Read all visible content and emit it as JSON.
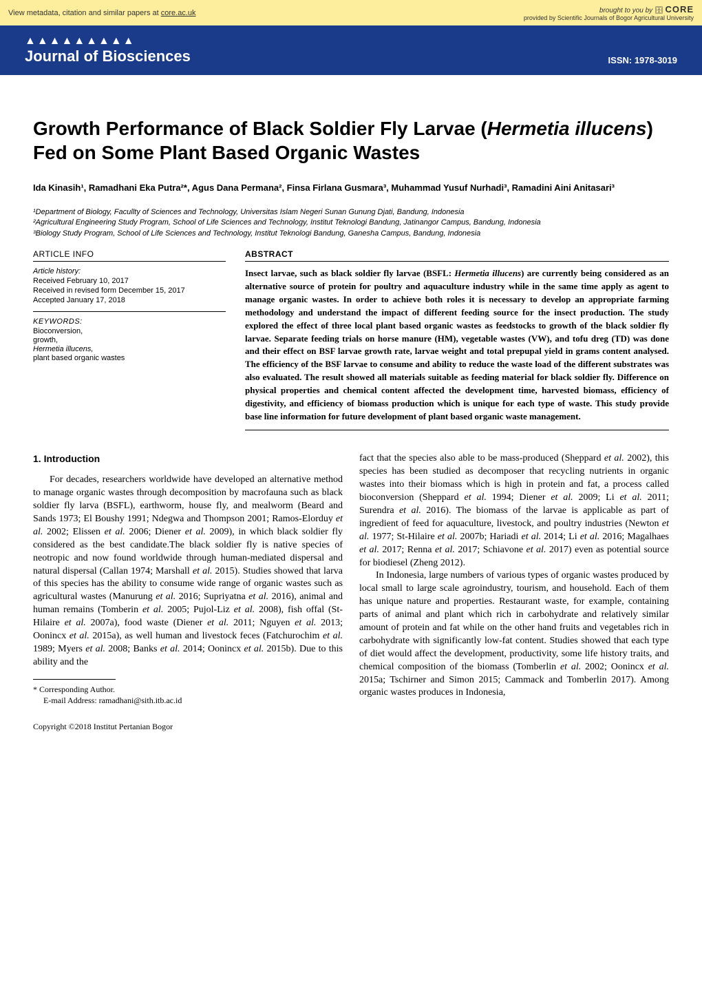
{
  "core": {
    "left_prefix": "View metadata, citation and similar papers at ",
    "left_link": "core.ac.uk",
    "brought_prefix": "brought to you by ",
    "logo": "CORE",
    "provided_prefix": "provided by ",
    "provided_name": "Scientific Journals of Bogor Agricultural University"
  },
  "journal_header": {
    "dots": "▲▲▲▲▲▲▲▲▲",
    "name": "Journal of Biosciences",
    "issn_label": "ISSN: 1978-3019"
  },
  "title": {
    "pre": "Growth Performance of Black Soldier Fly Larvae (",
    "species": "Hermetia illucens",
    "post": ") Fed on Some Plant Based Organic Wastes"
  },
  "authors": "Ida Kinasih¹, Ramadhani Eka Putra²*, Agus Dana Permana², Finsa Firlana Gusmara³, Muhammad Yusuf Nurhadi³, Ramadini Aini Anitasari³",
  "affiliations": [
    "¹Department of Biology, Facullty of Sciences and Technology, Universitas Islam Negeri Sunan Gunung Djati, Bandung, Indonesia",
    "²Agricultural Engineering Study Program, School of Life Sciences and Technology, Institut Teknologi Bandung, Jatinangor Campus, Bandung, Indonesia",
    "³Biology Study Program, School of Life Sciences and Technology, Institut Teknologi Bandung, Ganesha Campus, Bandung, Indonesia"
  ],
  "article_info": {
    "heading": "ARTICLE INFO",
    "history_label": "Article history:",
    "history": [
      "Received February 10, 2017",
      "Received in revised form December 15, 2017",
      "Accepted January 17, 2018"
    ],
    "keywords_heading": "KEYWORDS:",
    "keywords": [
      "Bioconversion,",
      "growth,",
      "Hermetia illucens,",
      "plant based organic wastes"
    ]
  },
  "abstract": {
    "heading": "ABSTRACT",
    "pre": "Insect larvae, such as black soldier fly larvae (BSFL: ",
    "species": "Hermetia illucens",
    "post": ") are currently being considered as an alternative source of protein for poultry and aquaculture industry while in the same time apply as agent to manage organic wastes. In order to achieve both roles it is necessary to develop an appropriate farming methodology and understand the impact of different feeding source for the insect production. The study explored the effect of three local plant based organic wastes as feedstocks to growth of the black soldier fly larvae. Separate feeding trials on horse manure (HM), vegetable wastes (VW), and tofu dreg (TD) was done and their effect on BSF larvae growth rate, larvae weight and total prepupal yield in grams content analysed. The efficiency of the BSF larvae to consume and ability to reduce the waste load of the different substrates was also evaluated. The result showed all materials suitable as feeding material for black soldier fly. Difference on physical properties and chemical content affected the development time, harvested biomass, efficiency of digestivity, and efficiency of biomass production which is unique for each type of waste. This study provide base line information for future development of plant based organic waste management."
  },
  "intro": {
    "heading": "1.  Introduction",
    "col1_html": "<span class=\"indent\"></span>For decades, researchers worldwide have developed an alternative method to manage organic wastes through decomposition by macrofauna such as  black soldier fly larva (BSFL), earthworm, house fly, and mealworm (Beard and Sands 1973; El Boushy 1991; Ndegwa and Thompson 2001; Ramos-Elorduy <span class=\"it\">et al.</span> 2002; Elissen <span class=\"it\">et al.</span> 2006; Diener <span class=\"it\">et al.</span> 2009), in which  black soldier fly considered as the best candidate.The black soldier fly is native species of neotropic and now found worldwide through human-mediated dispersal and natural dispersal (Callan 1974; Marshall <span class=\"it\">et al.</span> 2015). Studies showed that larva of this species has the ability to consume wide range of organic wastes such as agricultural wastes (Manurung <span class=\"it\">et al.</span> 2016; Supriyatna <span class=\"it\">et al.</span> 2016), animal and human remains (Tomberin <span class=\"it\">et al.</span> 2005; Pujol-Liz <span class=\"it\">et al.</span> 2008), fish offal (St-Hilaire <span class=\"it\">et al.</span> 2007a), food waste (Diener <span class=\"it\">et al.</span> 2011; Nguyen <span class=\"it\">et al.</span> 2013; Oonincx <span class=\"it\">et al.</span> 2015a), as well human and livestock feces (Fatchurochim <span class=\"it\">et al.</span> 1989; Myers <span class=\"it\">et al.</span> 2008; Banks <span class=\"it\">et al.</span> 2014; Oonincx <span class=\"it\">et al.</span> 2015b). Due to this ability and the",
    "col2_html": "fact that the species also able to be mass-produced (Sheppard <span class=\"it\">et al.</span> 2002), this species has been studied as decomposer that recycling  nutrients in organic wastes into their biomass which is high in protein and fat, a process called bioconversion (Sheppard <span class=\"it\">et al.</span> 1994; Diener <span class=\"it\">et al.</span> 2009; Li <span class=\"it\">et al.</span> 2011; Surendra <span class=\"it\">et al.</span> 2016). The biomass of the larvae is applicable as part of ingredient of feed for aquaculture, livestock, and poultry industries (Newton <span class=\"it\">et al.</span> 1977; St-Hilaire <span class=\"it\">et al.</span> 2007b; Hariadi <span class=\"it\">et al.</span> 2014; Li <span class=\"it\">et al.</span> 2016; Magalhaes <span class=\"it\">et al.</span> 2017; Renna <span class=\"it\">et al.</span> 2017; Schiavone <span class=\"it\">et al.</span> 2017) even as potential source for biodiesel (Zheng 2012).<br><span class=\"indent\"></span>In Indonesia, large numbers of various types of organic wastes produced by local small to large scale agroindustry, tourism, and household. Each of them has unique nature and properties. Restaurant waste, for example, containing parts of animal and plant which rich in carbohydrate and relatively similar amount of protein and fat while on the other hand fruits and vegetables rich in carbohydrate with significantly low-fat content. Studies showed that each type of diet would affect the development, productivity, some life history traits, and chemical composition of the biomass (Tomberlin <span class=\"it\">et al.</span> 2002; Oonincx <span class=\"it\">et al.</span> 2015a; Tschirner and Simon 2015; Cammack and Tomberlin 2017). Among organic wastes produces in Indonesia,"
  },
  "footnote": {
    "corr_label": "* Corresponding Author.",
    "email_label": "E-mail Address: ",
    "email": "ramadhani@sith.itb.ac.id"
  },
  "copyright": "Copyright ©2018 Institut Pertanian Bogor"
}
